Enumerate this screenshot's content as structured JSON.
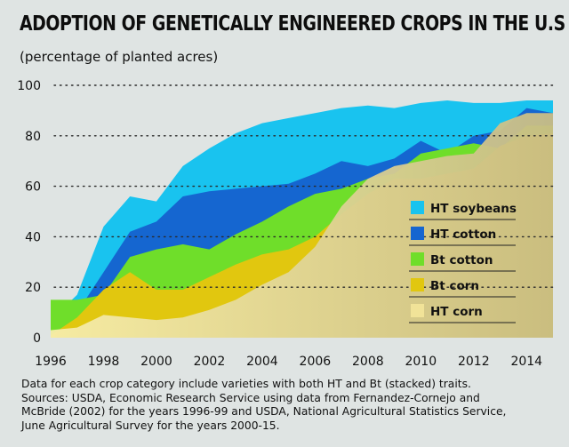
{
  "title": "ADOPTION OF GENETICALLY ENGINEERED CROPS IN THE U.S",
  "subtitle": "(percentage of planted acres)",
  "notes": [
    "Data for each crop category include varieties with both HT and Bt (stacked) traits.",
    "Sources: USDA, Economic Research Service using data from Fernandez-Cornejo and",
    "McBride (2002) for the years 1996-99 and USDA, National Agricultural Statistics Service,",
    "June Agricultural Survey for the years 2000-15."
  ],
  "chart_data": {
    "type": "area",
    "title": "ADOPTION OF GENETICALLY ENGINEERED CROPS IN THE U.S",
    "ylabel": "(percentage of planted acres)",
    "x": [
      1996,
      1997,
      1998,
      1999,
      2000,
      2001,
      2002,
      2003,
      2004,
      2005,
      2006,
      2007,
      2008,
      2009,
      2010,
      2011,
      2012,
      2013,
      2014,
      2015
    ],
    "xlim": [
      1996,
      2015
    ],
    "ylim": [
      0,
      100
    ],
    "xticks": [
      "1996",
      "1998",
      "2000",
      "2002",
      "2004",
      "2006",
      "2008",
      "2010",
      "2012",
      "2014"
    ],
    "yticks": [
      "0",
      "20",
      "40",
      "60",
      "80",
      "100"
    ],
    "grid": "horizontal dotted",
    "legend_position": "right-center",
    "series": [
      {
        "name": "HT soybeans",
        "color": "#19c3ef",
        "values": [
          7,
          17,
          44,
          56,
          54,
          68,
          75,
          81,
          85,
          87,
          89,
          91,
          92,
          91,
          93,
          94,
          93,
          93,
          94,
          94
        ]
      },
      {
        "name": "HT cotton",
        "color": "#1566d0",
        "values": [
          2,
          10,
          26,
          42,
          46,
          56,
          58,
          59,
          60,
          61,
          65,
          70,
          68,
          71,
          78,
          73,
          80,
          82,
          91,
          89
        ]
      },
      {
        "name": "Bt cotton",
        "color": "#6fde2a",
        "values": [
          15,
          15,
          17,
          32,
          35,
          37,
          35,
          41,
          46,
          52,
          57,
          59,
          63,
          65,
          73,
          75,
          77,
          75,
          84,
          84
        ]
      },
      {
        "name": "Bt corn",
        "color": "#e1c70f",
        "values": [
          1,
          8,
          19,
          26,
          19,
          19,
          24,
          29,
          33,
          35,
          40,
          49,
          57,
          63,
          63,
          65,
          67,
          76,
          80,
          81
        ]
      },
      {
        "name": "HT corn",
        "color": "#f1e398",
        "values": [
          3,
          4,
          9,
          8,
          7,
          8,
          11,
          15,
          21,
          26,
          36,
          52,
          63,
          68,
          70,
          72,
          73,
          85,
          89,
          89
        ]
      }
    ]
  }
}
